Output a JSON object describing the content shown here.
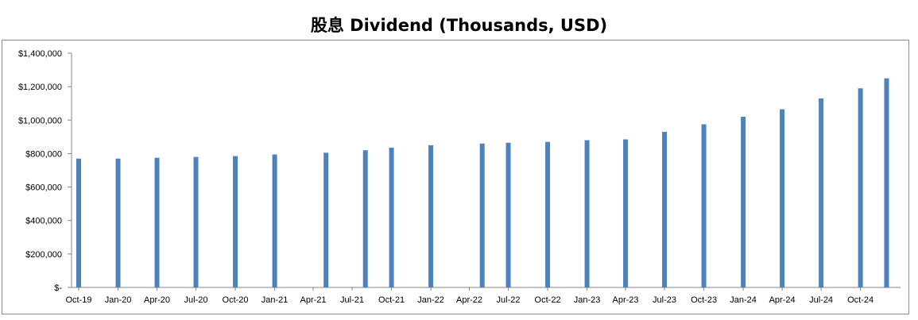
{
  "chart_data": {
    "type": "bar",
    "title": "股息 Dividend (Thousands, USD)",
    "xlabel": "",
    "ylabel": "",
    "ylim": [
      0,
      1400000
    ],
    "y_ticks": [
      0,
      200000,
      400000,
      600000,
      800000,
      1000000,
      1200000,
      1400000
    ],
    "y_tick_labels": [
      "$-",
      "$200,000",
      "$400,000",
      "$600,000",
      "$800,000",
      "$1,000,000",
      "$1,200,000",
      "$1,400,000"
    ],
    "x_tick_labels": [
      "Oct-19",
      "Jan-20",
      "Apr-20",
      "Jul-20",
      "Oct-20",
      "Jan-21",
      "Apr-21",
      "Jul-21",
      "Oct-21",
      "Jan-22",
      "Apr-22",
      "Jul-22",
      "Oct-22",
      "Jan-23",
      "Apr-23",
      "Jul-23",
      "Oct-23",
      "Jan-24",
      "Apr-24",
      "Jul-24",
      "Oct-24"
    ],
    "grid": false,
    "legend": "none",
    "bar_color": "#4f81bd",
    "series": [
      {
        "x": [
          "2019-10-01",
          "2020-01-01",
          "2020-04-01",
          "2020-07-01",
          "2020-10-01",
          "2021-01-01",
          "2021-05-01",
          "2021-08-01",
          "2021-10-01",
          "2022-01-01",
          "2022-05-01",
          "2022-07-01",
          "2022-10-01",
          "2023-01-01",
          "2023-04-01",
          "2023-07-01",
          "2023-10-01",
          "2024-01-01",
          "2024-04-01",
          "2024-07-01",
          "2024-10-01",
          "2024-12-01"
        ],
        "values": [
          770000,
          770000,
          775000,
          780000,
          785000,
          795000,
          805000,
          820000,
          835000,
          850000,
          860000,
          865000,
          870000,
          880000,
          885000,
          930000,
          975000,
          1020000,
          1065000,
          1130000,
          1190000,
          1250000
        ]
      }
    ]
  }
}
